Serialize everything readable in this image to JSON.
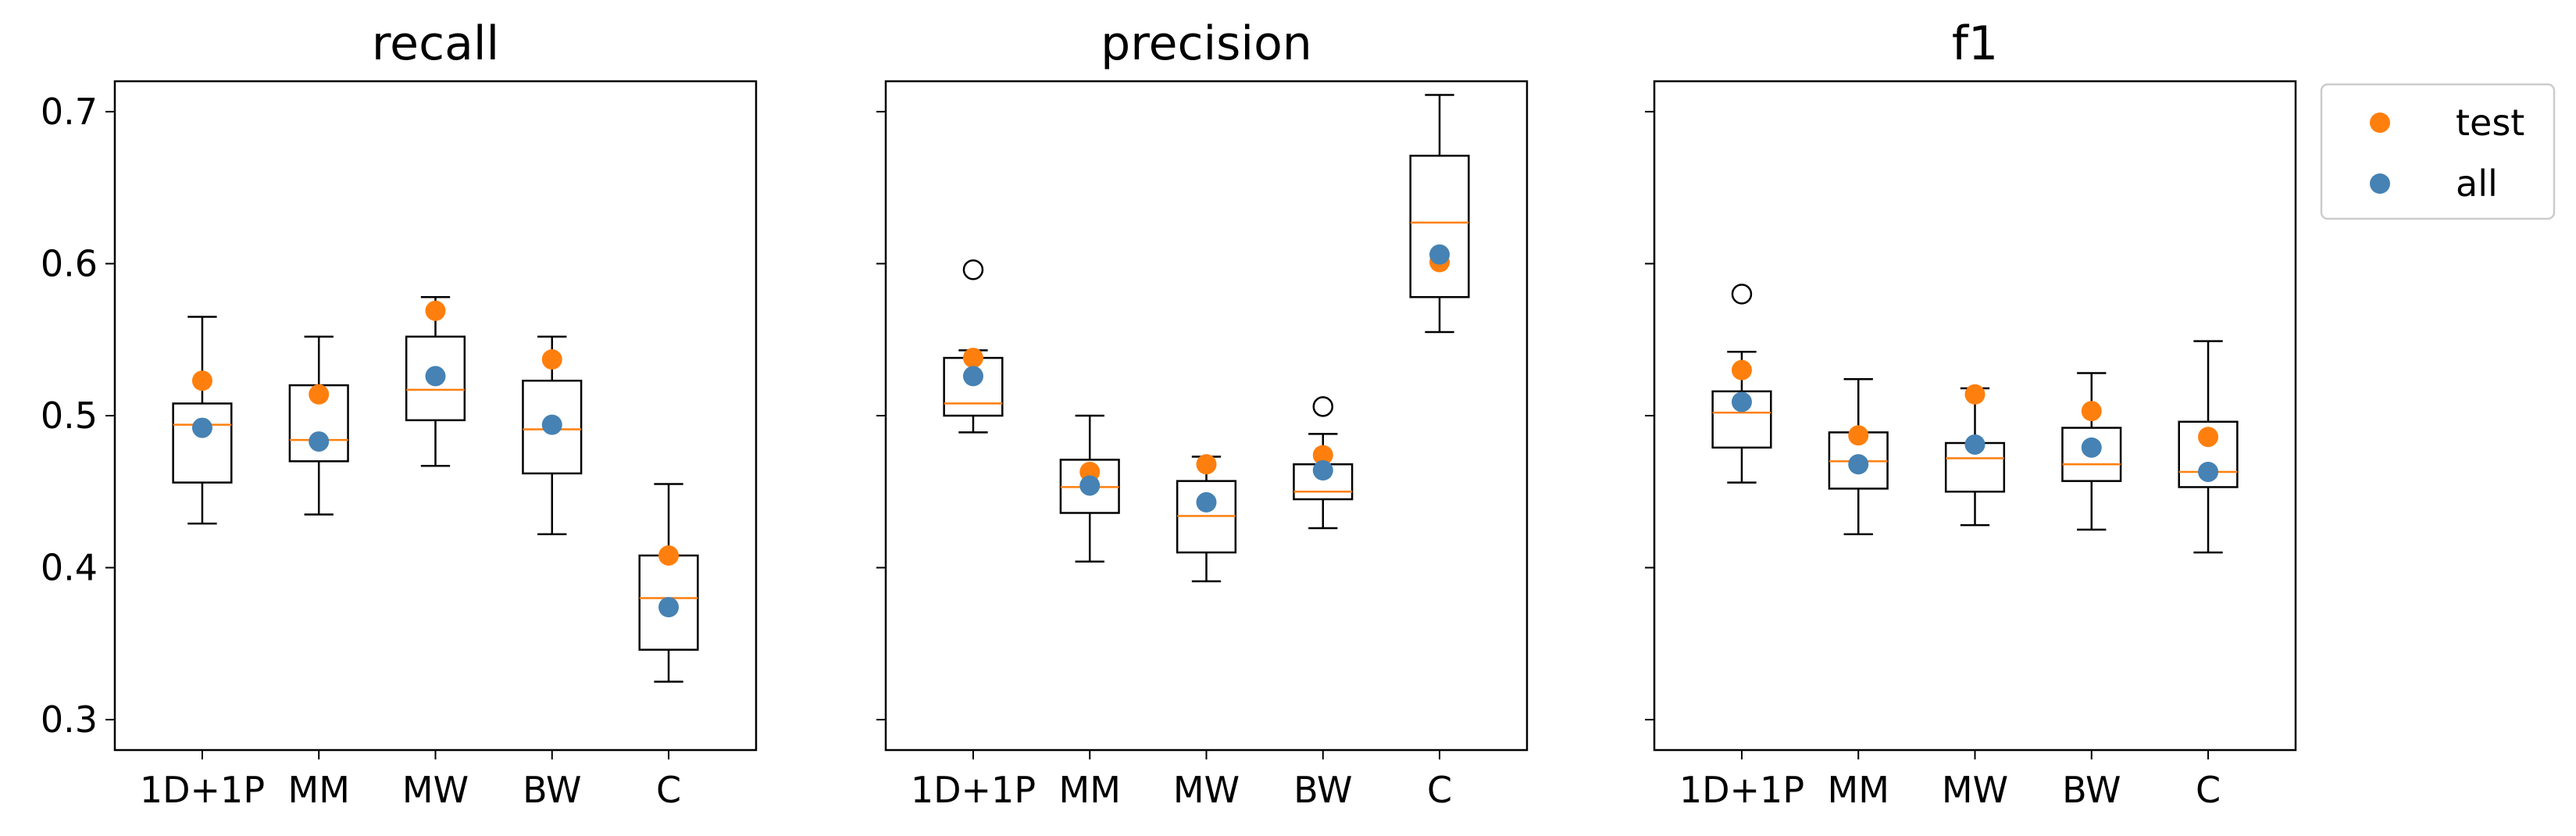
{
  "colors": {
    "test": "#ff7f0e",
    "all": "#4682b4",
    "median": "#ff7f0e",
    "box": "#000000"
  },
  "legend": {
    "placement": "outside-upper-right"
  },
  "chart_data": [
    {
      "type": "box",
      "title": "recall",
      "categories": [
        "1D+1P",
        "MM",
        "MW",
        "BW",
        "C"
      ],
      "ylim": [
        0.28,
        0.72
      ],
      "yticks": [
        "0.3",
        "0.4",
        "0.5",
        "0.6",
        "0.7"
      ],
      "show_ytick_labels": true,
      "boxes": [
        {
          "whislo": 0.429,
          "q1": 0.456,
          "med": 0.494,
          "q3": 0.508,
          "whishi": 0.565,
          "fliers": []
        },
        {
          "whislo": 0.435,
          "q1": 0.47,
          "med": 0.484,
          "q3": 0.52,
          "whishi": 0.552,
          "fliers": []
        },
        {
          "whislo": 0.467,
          "q1": 0.497,
          "med": 0.517,
          "q3": 0.552,
          "whishi": 0.578,
          "fliers": []
        },
        {
          "whislo": 0.422,
          "q1": 0.462,
          "med": 0.491,
          "q3": 0.523,
          "whishi": 0.552,
          "fliers": []
        },
        {
          "whislo": 0.325,
          "q1": 0.346,
          "med": 0.38,
          "q3": 0.408,
          "whishi": 0.455,
          "fliers": []
        }
      ],
      "series": [
        {
          "name": "test",
          "values": [
            0.523,
            0.514,
            0.569,
            0.537,
            0.408
          ]
        },
        {
          "name": "all",
          "values": [
            0.492,
            0.483,
            0.526,
            0.494,
            0.374
          ]
        }
      ]
    },
    {
      "type": "box",
      "title": "precision",
      "categories": [
        "1D+1P",
        "MM",
        "MW",
        "BW",
        "C"
      ],
      "ylim": [
        0.28,
        0.72
      ],
      "yticks": [
        "0.3",
        "0.4",
        "0.5",
        "0.6",
        "0.7"
      ],
      "show_ytick_labels": false,
      "boxes": [
        {
          "whislo": 0.489,
          "q1": 0.5,
          "med": 0.508,
          "q3": 0.538,
          "whishi": 0.543,
          "fliers": [
            0.596
          ]
        },
        {
          "whislo": 0.404,
          "q1": 0.436,
          "med": 0.453,
          "q3": 0.471,
          "whishi": 0.5,
          "fliers": []
        },
        {
          "whislo": 0.391,
          "q1": 0.41,
          "med": 0.434,
          "q3": 0.457,
          "whishi": 0.473,
          "fliers": []
        },
        {
          "whislo": 0.426,
          "q1": 0.445,
          "med": 0.45,
          "q3": 0.468,
          "whishi": 0.488,
          "fliers": [
            0.506
          ]
        },
        {
          "whislo": 0.555,
          "q1": 0.578,
          "med": 0.627,
          "q3": 0.671,
          "whishi": 0.711,
          "fliers": []
        }
      ],
      "series": [
        {
          "name": "test",
          "values": [
            0.538,
            0.463,
            0.468,
            0.474,
            0.601
          ]
        },
        {
          "name": "all",
          "values": [
            0.526,
            0.454,
            0.443,
            0.464,
            0.606
          ]
        }
      ]
    },
    {
      "type": "box",
      "title": "f1",
      "categories": [
        "1D+1P",
        "MM",
        "MW",
        "BW",
        "C"
      ],
      "ylim": [
        0.28,
        0.72
      ],
      "yticks": [
        "0.3",
        "0.4",
        "0.5",
        "0.6",
        "0.7"
      ],
      "show_ytick_labels": false,
      "boxes": [
        {
          "whislo": 0.456,
          "q1": 0.479,
          "med": 0.502,
          "q3": 0.516,
          "whishi": 0.542,
          "fliers": [
            0.58
          ]
        },
        {
          "whislo": 0.422,
          "q1": 0.452,
          "med": 0.47,
          "q3": 0.489,
          "whishi": 0.524,
          "fliers": []
        },
        {
          "whislo": 0.428,
          "q1": 0.45,
          "med": 0.472,
          "q3": 0.482,
          "whishi": 0.518,
          "fliers": []
        },
        {
          "whislo": 0.425,
          "q1": 0.457,
          "med": 0.468,
          "q3": 0.492,
          "whishi": 0.528,
          "fliers": []
        },
        {
          "whislo": 0.41,
          "q1": 0.453,
          "med": 0.463,
          "q3": 0.496,
          "whishi": 0.549,
          "fliers": []
        }
      ],
      "series": [
        {
          "name": "test",
          "values": [
            0.53,
            0.487,
            0.514,
            0.503,
            0.486
          ]
        },
        {
          "name": "all",
          "values": [
            0.509,
            0.468,
            0.481,
            0.479,
            0.463
          ]
        }
      ]
    }
  ]
}
